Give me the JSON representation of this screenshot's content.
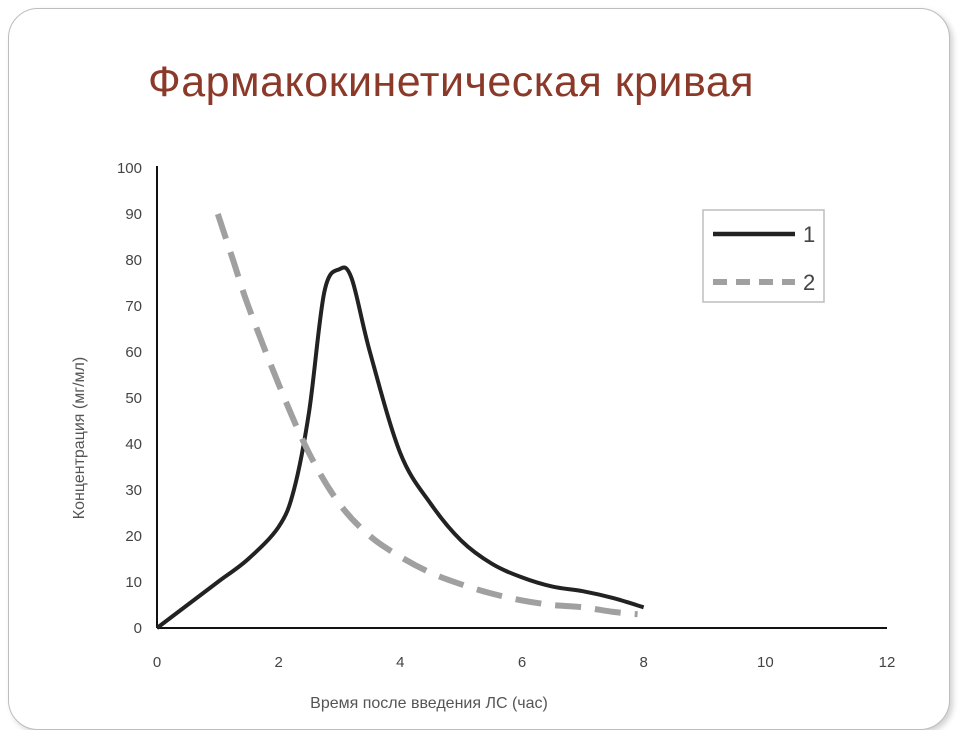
{
  "slide": {
    "title": "Фармакокинетическая кривая"
  },
  "chart_data": {
    "type": "line",
    "xlabel": "Время после введения ЛС (час)",
    "ylabel": "Концентрация (мг/мл)",
    "xlim": [
      0,
      12
    ],
    "ylim": [
      0,
      100
    ],
    "xticks": [
      0,
      2,
      4,
      6,
      8,
      10,
      12
    ],
    "yticks": [
      0,
      10,
      20,
      30,
      40,
      50,
      60,
      70,
      80,
      90,
      100
    ],
    "grid": false,
    "legend_position": "top-right",
    "series": [
      {
        "name": "1",
        "style": "solid",
        "color": "#222222",
        "x": [
          0,
          0.5,
          1.0,
          1.5,
          2.0,
          2.25,
          2.5,
          2.75,
          3.0,
          3.2,
          3.5,
          4.0,
          4.5,
          5.0,
          5.5,
          6.0,
          6.5,
          7.0,
          7.5,
          8.0
        ],
        "y": [
          0,
          5,
          10,
          15,
          22,
          30,
          47,
          73,
          78,
          76,
          60,
          38,
          27,
          19,
          14,
          11,
          9,
          8,
          6.5,
          4.5
        ]
      },
      {
        "name": "2",
        "style": "dashed",
        "color": "#a0a0a0",
        "x": [
          1.0,
          1.25,
          1.5,
          2.0,
          2.5,
          3.0,
          3.5,
          4.0,
          4.5,
          5.0,
          5.5,
          6.0,
          6.5,
          7.0,
          7.5,
          7.9
        ],
        "y": [
          90,
          80,
          70,
          53,
          38,
          27,
          20,
          15.5,
          12,
          9.5,
          7.5,
          6,
          5,
          4.5,
          3.5,
          3
        ]
      }
    ]
  }
}
